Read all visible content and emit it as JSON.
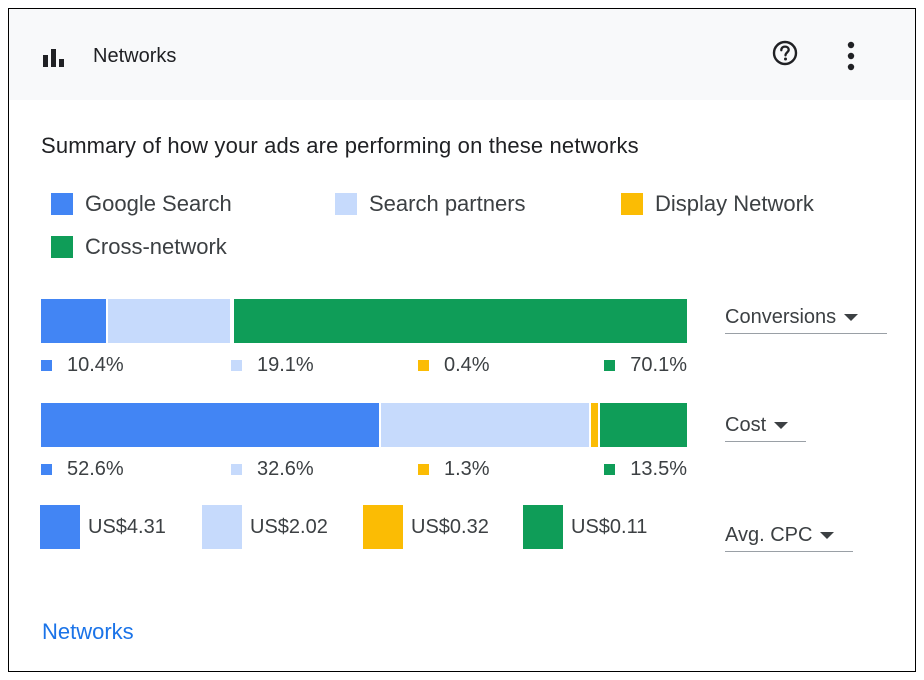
{
  "header": {
    "title": "Networks",
    "icon": "bar-chart-icon",
    "help_icon": "help-circle-icon",
    "more_icon": "more-vert-icon"
  },
  "summary_title": "Summary of how your ads are performing on these networks",
  "legend": [
    {
      "label": "Google Search",
      "color": "#4285f4"
    },
    {
      "label": "Search partners",
      "color": "#c6dafc"
    },
    {
      "label": "Display Network",
      "color": "#fbbc04"
    },
    {
      "label": "Cross-network",
      "color": "#0f9d58"
    }
  ],
  "chart_data": [
    {
      "type": "bar",
      "title": "",
      "metric": "Conversions",
      "categories": [
        "Google Search",
        "Search partners",
        "Display Network",
        "Cross-network"
      ],
      "values": [
        10.4,
        19.1,
        0.4,
        70.1
      ],
      "labels": [
        "10.4%",
        "19.1%",
        "0.4%",
        "70.1%"
      ],
      "colors": [
        "#4285f4",
        "#c6dafc",
        "#fbbc04",
        "#0f9d58"
      ],
      "stacked": true
    },
    {
      "type": "bar",
      "title": "",
      "metric": "Cost",
      "categories": [
        "Google Search",
        "Search partners",
        "Display Network",
        "Cross-network"
      ],
      "values": [
        52.6,
        32.6,
        1.3,
        13.5
      ],
      "labels": [
        "52.6%",
        "32.6%",
        "1.3%",
        "13.5%"
      ],
      "colors": [
        "#4285f4",
        "#c6dafc",
        "#fbbc04",
        "#0f9d58"
      ],
      "stacked": true
    }
  ],
  "avg_cpc": {
    "metric": "Avg. CPC",
    "values": [
      "US$4.31",
      "US$2.02",
      "US$0.32",
      "US$0.11"
    ],
    "colors": [
      "#4285f4",
      "#c6dafc",
      "#fbbc04",
      "#0f9d58"
    ]
  },
  "selectors": {
    "conversions": "Conversions",
    "cost": "Cost",
    "avg_cpc": "Avg. CPC"
  },
  "footer_link": "Networks"
}
